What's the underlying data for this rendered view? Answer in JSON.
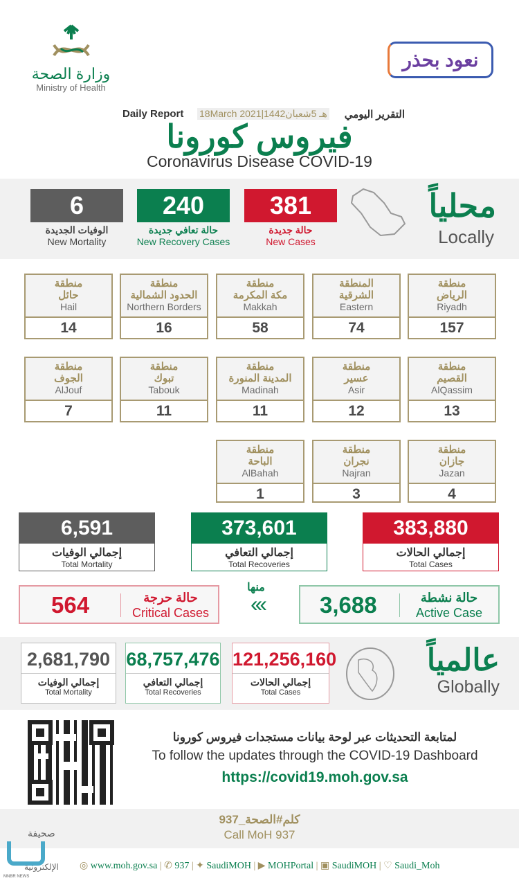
{
  "header": {
    "moh_ar": "وزارة الصحة",
    "moh_en": "Ministry of Health",
    "campaign_logo": "نعود بحذر",
    "report_ar": "التقرير اليومي",
    "report_en": "Daily Report",
    "date": "18March 2021|1442هـ 5شعبان",
    "title_ar": "فيروس كورونا",
    "title_en": "Coronavirus Disease COVID-19"
  },
  "locally": {
    "ar": "محلياً",
    "en": "Locally",
    "new_cases": {
      "value": "381",
      "ar": "حالة جديدة",
      "en": "New Cases"
    },
    "new_recovery": {
      "value": "240",
      "ar": "حالة تعافي جديدة",
      "en": "New Recovery Cases"
    },
    "new_mortality": {
      "value": "6",
      "ar": "الوفيات الجديدة",
      "en": "New Mortality"
    }
  },
  "regions": [
    {
      "ar1": "منطقة",
      "ar2": "الرياض",
      "en": "Riyadh",
      "value": "157"
    },
    {
      "ar1": "المنطقة",
      "ar2": "الشرقية",
      "en": "Eastern",
      "value": "74"
    },
    {
      "ar1": "منطقة",
      "ar2": "مكة المكرمة",
      "en": "Makkah",
      "value": "58"
    },
    {
      "ar1": "منطقة",
      "ar2": "الحدود الشمالية",
      "en": "Northern Borders",
      "value": "16"
    },
    {
      "ar1": "منطقة",
      "ar2": "حائل",
      "en": "Hail",
      "value": "14"
    },
    {
      "ar1": "منطقة",
      "ar2": "القصيم",
      "en": "AlQassim",
      "value": "13"
    },
    {
      "ar1": "منطقة",
      "ar2": "عسير",
      "en": "Asir",
      "value": "12"
    },
    {
      "ar1": "منطقة",
      "ar2": "المدينة المنورة",
      "en": "Madinah",
      "value": "11"
    },
    {
      "ar1": "منطقة",
      "ar2": "تبوك",
      "en": "Tabouk",
      "value": "11"
    },
    {
      "ar1": "منطقة",
      "ar2": "الجوف",
      "en": "AlJouf",
      "value": "7"
    },
    {
      "ar1": "منطقة",
      "ar2": "جازان",
      "en": "Jazan",
      "value": "4"
    },
    {
      "ar1": "منطقة",
      "ar2": "نجران",
      "en": "Najran",
      "value": "3"
    },
    {
      "ar1": "منطقة",
      "ar2": "الباحة",
      "en": "AlBahah",
      "value": "1"
    }
  ],
  "totals": {
    "cases": {
      "value": "383,880",
      "ar": "إجمالي الحالات",
      "en": "Total Cases"
    },
    "recoveries": {
      "value": "373,601",
      "ar": "إجمالي التعافي",
      "en": "Total Recoveries"
    },
    "mortality": {
      "value": "6,591",
      "ar": "إجمالي الوفيات",
      "en": "Total Mortality"
    }
  },
  "active": {
    "value": "3,688",
    "ar": "حالة نشطة",
    "en": "Active Case"
  },
  "of_which": "منها",
  "critical": {
    "value": "564",
    "ar": "حالة حرجة",
    "en": "Critical Cases"
  },
  "globally": {
    "ar": "عالمياً",
    "en": "Globally",
    "cases": {
      "value": "121,256,160",
      "ar": "إجمالي الحالات",
      "en": "Total Cases"
    },
    "recoveries": {
      "value": "68,757,476",
      "ar": "إجمالي التعافي",
      "en": "Total Recoveries"
    },
    "mortality": {
      "value": "2,681,790",
      "ar": "إجمالي الوفيات",
      "en": "Total Mortality"
    }
  },
  "dashboard": {
    "ar": "لمتابعة التحديثات عبر لوحة بيانات مستجدات فيروس كورونا",
    "en": "To follow the updates through the COVID-19 Dashboard",
    "url": "https://covid19.moh.gov.sa"
  },
  "call": {
    "ar": "كلم#الصحة_937",
    "en": "Call MoH 937"
  },
  "footer_links": [
    "www.moh.gov.sa",
    "937",
    "SaudiMOH",
    "MOHPortal",
    "SaudiMOH",
    "Saudi_Moh"
  ],
  "watermark": {
    "ar1": "صحيفة",
    "ar2": "الإلكترونية",
    "en": "MNBR NEWS"
  },
  "colors": {
    "red": "#d0182f",
    "green": "#0b7f4f",
    "gray": "#5d5d5d",
    "gold": "#a0905f"
  }
}
